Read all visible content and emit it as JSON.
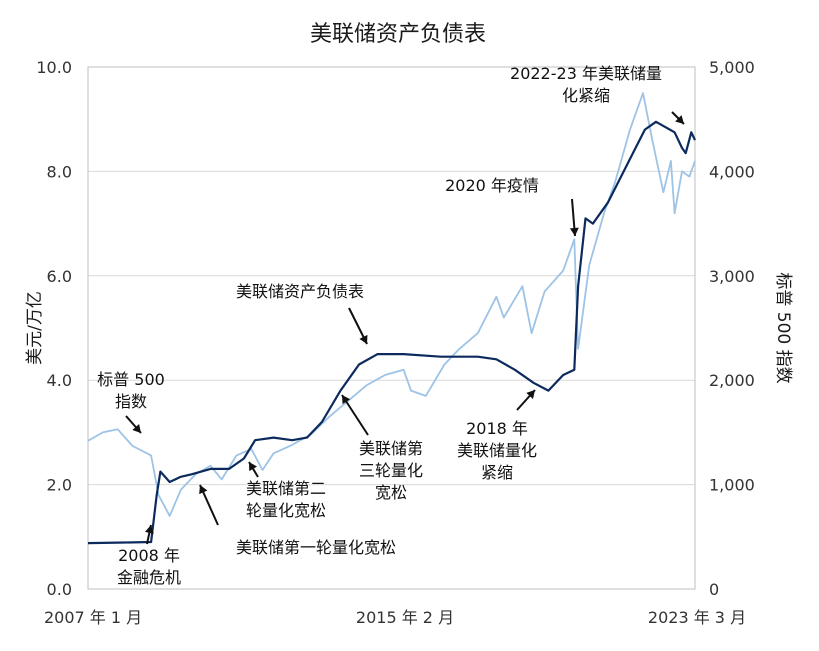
{
  "chart_data": {
    "type": "line",
    "title": "美联储资产负债表",
    "ylabel": "美元/万亿",
    "y2label": "标普 500 指数",
    "ylim": [
      0,
      10
    ],
    "y2lim": [
      0,
      5000
    ],
    "grid": true,
    "x_tick_labels": [
      "2007 年 1 月",
      "2015 年 2 月",
      "2023 年 3 月"
    ],
    "y_tick_labels": [
      "0.0",
      "2.0",
      "4.0",
      "6.0",
      "8.0",
      "10.0"
    ],
    "y2_tick_labels": [
      "0",
      "1,000",
      "2,000",
      "3,000",
      "4,000",
      "5,000"
    ],
    "series": [
      {
        "name": "美联储资产负债表",
        "axis": "left",
        "color": "#0d2a5e",
        "points": [
          [
            2007.0,
            0.88
          ],
          [
            2008.0,
            0.89
          ],
          [
            2008.7,
            0.9
          ],
          [
            2008.85,
            1.8
          ],
          [
            2008.95,
            2.25
          ],
          [
            2009.2,
            2.05
          ],
          [
            2009.5,
            2.15
          ],
          [
            2009.8,
            2.2
          ],
          [
            2010.3,
            2.3
          ],
          [
            2010.8,
            2.3
          ],
          [
            2011.2,
            2.5
          ],
          [
            2011.5,
            2.85
          ],
          [
            2012.0,
            2.9
          ],
          [
            2012.5,
            2.85
          ],
          [
            2012.9,
            2.9
          ],
          [
            2013.3,
            3.2
          ],
          [
            2013.8,
            3.8
          ],
          [
            2014.3,
            4.3
          ],
          [
            2014.8,
            4.5
          ],
          [
            2015.5,
            4.5
          ],
          [
            2016.5,
            4.45
          ],
          [
            2017.5,
            4.45
          ],
          [
            2018.0,
            4.4
          ],
          [
            2018.5,
            4.2
          ],
          [
            2019.0,
            3.95
          ],
          [
            2019.4,
            3.8
          ],
          [
            2019.8,
            4.1
          ],
          [
            2020.1,
            4.2
          ],
          [
            2020.2,
            5.8
          ],
          [
            2020.4,
            7.1
          ],
          [
            2020.6,
            7.0
          ],
          [
            2021.0,
            7.4
          ],
          [
            2021.5,
            8.1
          ],
          [
            2022.0,
            8.8
          ],
          [
            2022.3,
            8.95
          ],
          [
            2022.8,
            8.75
          ],
          [
            2023.0,
            8.45
          ],
          [
            2023.1,
            8.35
          ],
          [
            2023.25,
            8.75
          ],
          [
            2023.35,
            8.6
          ]
        ]
      },
      {
        "name": "标普 500 指数",
        "axis": "right",
        "color": "#9dc3e6",
        "points": [
          [
            2007.0,
            1420
          ],
          [
            2007.4,
            1500
          ],
          [
            2007.8,
            1530
          ],
          [
            2008.2,
            1370
          ],
          [
            2008.7,
            1280
          ],
          [
            2008.9,
            900
          ],
          [
            2009.2,
            700
          ],
          [
            2009.5,
            950
          ],
          [
            2009.9,
            1100
          ],
          [
            2010.3,
            1180
          ],
          [
            2010.6,
            1050
          ],
          [
            2011.0,
            1280
          ],
          [
            2011.4,
            1340
          ],
          [
            2011.7,
            1140
          ],
          [
            2012.0,
            1300
          ],
          [
            2012.5,
            1380
          ],
          [
            2013.0,
            1480
          ],
          [
            2013.5,
            1650
          ],
          [
            2014.0,
            1800
          ],
          [
            2014.5,
            1950
          ],
          [
            2015.0,
            2050
          ],
          [
            2015.5,
            2100
          ],
          [
            2015.7,
            1900
          ],
          [
            2016.1,
            1850
          ],
          [
            2016.6,
            2150
          ],
          [
            2017.0,
            2300
          ],
          [
            2017.5,
            2450
          ],
          [
            2018.0,
            2800
          ],
          [
            2018.2,
            2600
          ],
          [
            2018.7,
            2900
          ],
          [
            2018.95,
            2450
          ],
          [
            2019.3,
            2850
          ],
          [
            2019.8,
            3050
          ],
          [
            2020.1,
            3350
          ],
          [
            2020.2,
            2300
          ],
          [
            2020.5,
            3100
          ],
          [
            2020.9,
            3600
          ],
          [
            2021.2,
            3900
          ],
          [
            2021.6,
            4400
          ],
          [
            2021.95,
            4750
          ],
          [
            2022.2,
            4300
          ],
          [
            2022.5,
            3800
          ],
          [
            2022.7,
            4100
          ],
          [
            2022.8,
            3600
          ],
          [
            2023.0,
            4000
          ],
          [
            2023.2,
            3950
          ],
          [
            2023.35,
            4100
          ]
        ]
      }
    ],
    "annotations": [
      {
        "lines": [
          "2022-23 年美联储量",
          "化紧缩"
        ]
      },
      {
        "lines": [
          "2020 年疫情"
        ]
      },
      {
        "lines": [
          "美联储资产负债表"
        ]
      },
      {
        "lines": [
          "标普 500",
          "指数"
        ]
      },
      {
        "lines": [
          "美联储第",
          "三轮量化",
          "宽松"
        ]
      },
      {
        "lines": [
          "2018 年",
          "美联储量化",
          "紧缩"
        ]
      },
      {
        "lines": [
          "美联储第二",
          "轮量化宽松"
        ]
      },
      {
        "lines": [
          "美联储第一轮量化宽松"
        ]
      },
      {
        "lines": [
          "2008 年",
          "金融危机"
        ]
      }
    ]
  }
}
